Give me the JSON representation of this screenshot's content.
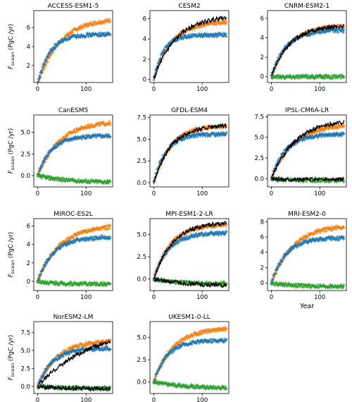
{
  "figure": {
    "ylabel_main": "F",
    "ylabel_sub": "ocean",
    "ylabel_unit": " (PgC /yr)",
    "xlabel": "Year"
  },
  "colors": {
    "blue": "#1f77b4",
    "orange": "#ff7f0e",
    "green": "#2ca02c",
    "black": "#000000"
  },
  "chart_data": [
    {
      "type": "line",
      "title": "ACCESS-ESM1-5",
      "xlim": [
        -8,
        155
      ],
      "ylim": [
        0.2,
        7.8
      ],
      "xticks": [
        0,
        100
      ],
      "yticks": [
        2,
        4,
        6
      ],
      "series": [
        {
          "color": "orange",
          "marker": "+",
          "end": 7.0,
          "tau": 45
        },
        {
          "color": "blue",
          "marker": "+",
          "end": 5.3,
          "tau": 25
        }
      ]
    },
    {
      "type": "line",
      "title": "CESM2",
      "xlim": [
        -8,
        155
      ],
      "ylim": [
        -0.3,
        6.8
      ],
      "xticks": [
        0,
        100
      ],
      "yticks": [
        0,
        2,
        4,
        6
      ],
      "series": [
        {
          "color": "orange",
          "marker": "+",
          "end": 5.7,
          "tau": 35
        },
        {
          "color": "blue",
          "marker": "+",
          "end": 4.4,
          "tau": 20
        },
        {
          "color": "black",
          "marker": "line",
          "end": 6.3,
          "tau": 45
        }
      ]
    },
    {
      "type": "line",
      "title": "CNRM-ESM2-1",
      "xlim": [
        -8,
        155
      ],
      "ylim": [
        -0.6,
        6.8
      ],
      "xticks": [
        0,
        100
      ],
      "yticks": [
        0,
        2,
        4,
        6
      ],
      "series": [
        {
          "color": "orange",
          "marker": "+",
          "end": 5.3,
          "tau": 38
        },
        {
          "color": "blue",
          "marker": "+",
          "end": 4.8,
          "tau": 30
        },
        {
          "color": "black",
          "marker": "line",
          "end": 5.3,
          "tau": 38
        },
        {
          "color": "green",
          "marker": "+",
          "end": 0.0,
          "tau": 10
        }
      ]
    },
    {
      "type": "line",
      "title": "CanESM5",
      "xlim": [
        -8,
        155
      ],
      "ylim": [
        -1.3,
        7.0
      ],
      "xticks": [
        0,
        100
      ],
      "yticks": [
        0.0,
        2.5,
        5.0
      ],
      "series": [
        {
          "color": "orange",
          "marker": "+",
          "end": 6.3,
          "tau": 45
        },
        {
          "color": "blue",
          "marker": "+",
          "end": 4.6,
          "tau": 28
        },
        {
          "color": "green",
          "marker": "+",
          "end": -0.8,
          "tau": 60
        }
      ]
    },
    {
      "type": "line",
      "title": "GFDL-ESM4",
      "xlim": [
        -8,
        155
      ],
      "ylim": [
        -0.5,
        7.8
      ],
      "xticks": [
        0,
        100
      ],
      "yticks": [
        0.0,
        2.5,
        5.0,
        7.5
      ],
      "series": [
        {
          "color": "orange",
          "marker": "+",
          "end": 6.6,
          "tau": 35
        },
        {
          "color": "blue",
          "marker": "+",
          "end": 5.6,
          "tau": 25
        },
        {
          "color": "black",
          "marker": "line",
          "end": 6.6,
          "tau": 35
        }
      ]
    },
    {
      "type": "line",
      "title": "IPSL-CM6A-LR",
      "xlim": [
        -8,
        155
      ],
      "ylim": [
        -1.0,
        7.7
      ],
      "xticks": [
        0,
        100
      ],
      "yticks": [
        0.0,
        2.5,
        5.0,
        7.5
      ],
      "series": [
        {
          "color": "orange",
          "marker": "+",
          "end": 6.6,
          "tau": 45
        },
        {
          "color": "blue",
          "marker": "+",
          "end": 5.4,
          "tau": 30
        },
        {
          "color": "black",
          "marker": "line",
          "end": 7.2,
          "tau": 50
        },
        {
          "color": "green",
          "marker": "+",
          "end": -0.2,
          "tau": 20
        },
        {
          "color": "black",
          "marker": "line",
          "end": -0.1,
          "tau": 20
        }
      ]
    },
    {
      "type": "line",
      "title": "MIROC-ES2L",
      "xlim": [
        -8,
        155
      ],
      "ylim": [
        -1.0,
        6.8
      ],
      "xticks": [
        0,
        100
      ],
      "yticks": [
        0,
        2,
        4,
        6
      ],
      "series": [
        {
          "color": "orange",
          "marker": "+",
          "end": 6.1,
          "tau": 45
        },
        {
          "color": "blue",
          "marker": "+",
          "end": 4.8,
          "tau": 32
        },
        {
          "color": "green",
          "marker": "+",
          "end": -0.3,
          "tau": 40
        }
      ]
    },
    {
      "type": "line",
      "title": "MPI-ESM1-2-LR",
      "xlim": [
        -8,
        155
      ],
      "ylim": [
        -1.3,
        6.8
      ],
      "xticks": [
        0,
        100
      ],
      "yticks": [
        0.0,
        2.5,
        5.0
      ],
      "series": [
        {
          "color": "orange",
          "marker": "+",
          "end": 6.2,
          "tau": 35
        },
        {
          "color": "blue",
          "marker": "+",
          "end": 5.2,
          "tau": 30
        },
        {
          "color": "black",
          "marker": "line",
          "end": 6.4,
          "tau": 38
        },
        {
          "color": "green",
          "marker": "+",
          "end": -0.6,
          "tau": 60
        },
        {
          "color": "black",
          "marker": "line",
          "end": -0.8,
          "tau": 70
        }
      ]
    },
    {
      "type": "line",
      "title": "MRI-ESM2-0",
      "xlim": [
        -8,
        155
      ],
      "ylim": [
        -1.0,
        8.4
      ],
      "xticks": [
        0,
        100
      ],
      "yticks": [
        0,
        2,
        4,
        6,
        8
      ],
      "series": [
        {
          "color": "orange",
          "marker": "+",
          "end": 7.6,
          "tau": 45
        },
        {
          "color": "blue",
          "marker": "+",
          "end": 5.9,
          "tau": 30
        },
        {
          "color": "green",
          "marker": "+",
          "end": -0.5,
          "tau": 50
        }
      ]
    },
    {
      "type": "line",
      "title": "NorESM2-LM",
      "xlim": [
        -8,
        155
      ],
      "ylim": [
        -1.0,
        9.0
      ],
      "xticks": [
        0,
        100
      ],
      "yticks": [
        0.0,
        2.5,
        5.0,
        7.5
      ],
      "series": [
        {
          "color": "orange",
          "marker": "+",
          "end": 6.4,
          "tau": 40
        },
        {
          "color": "blue",
          "marker": "+",
          "end": 5.3,
          "tau": 30
        },
        {
          "color": "black",
          "marker": "line",
          "end": 8.4,
          "tau": 110
        },
        {
          "color": "green",
          "marker": "+",
          "end": -0.3,
          "tau": 40
        },
        {
          "color": "black",
          "marker": "line",
          "end": -0.3,
          "tau": 40
        }
      ]
    },
    {
      "type": "line",
      "title": "UKESM1-0-LL",
      "xlim": [
        -8,
        155
      ],
      "ylim": [
        -1.3,
        6.8
      ],
      "xticks": [
        0,
        100
      ],
      "yticks": [
        0.0,
        2.5,
        5.0
      ],
      "series": [
        {
          "color": "orange",
          "marker": "+",
          "end": 6.1,
          "tau": 40
        },
        {
          "color": "blue",
          "marker": "+",
          "end": 4.7,
          "tau": 28
        },
        {
          "color": "green",
          "marker": "+",
          "end": -0.7,
          "tau": 60
        }
      ]
    }
  ]
}
